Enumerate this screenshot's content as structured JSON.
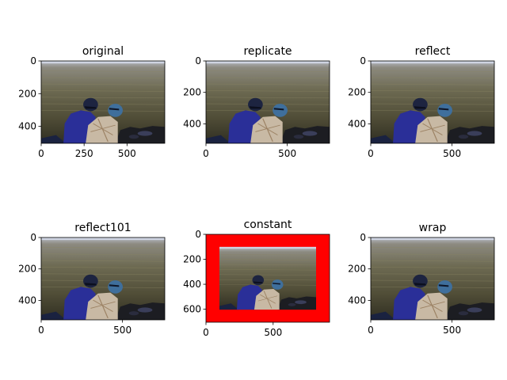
{
  "figure": {
    "background": "#ffffff",
    "pad_color": "#ff0000"
  },
  "chart_data": [
    {
      "type": "image",
      "title": "original",
      "xlim": [
        0,
        720
      ],
      "ylim": [
        504,
        0
      ],
      "xticks": [
        0,
        250,
        500
      ],
      "yticks": [
        0,
        200,
        400
      ],
      "image": {
        "x": [
          0,
          720
        ],
        "y": [
          0,
          504
        ]
      }
    },
    {
      "type": "image",
      "title": "replicate",
      "xlim": [
        0,
        760
      ],
      "ylim": [
        524,
        0
      ],
      "xticks": [
        0,
        500
      ],
      "yticks": [
        0,
        200,
        400
      ],
      "image": {
        "x": [
          0,
          760
        ],
        "y": [
          0,
          524
        ]
      }
    },
    {
      "type": "image",
      "title": "reflect",
      "xlim": [
        0,
        760
      ],
      "ylim": [
        524,
        0
      ],
      "xticks": [
        0,
        500
      ],
      "yticks": [
        0,
        200,
        400
      ],
      "image": {
        "x": [
          0,
          760
        ],
        "y": [
          0,
          524
        ]
      }
    },
    {
      "type": "image",
      "title": "reflect101",
      "xlim": [
        0,
        760
      ],
      "ylim": [
        524,
        0
      ],
      "xticks": [
        0,
        500
      ],
      "yticks": [
        0,
        200,
        400
      ],
      "image": {
        "x": [
          0,
          760
        ],
        "y": [
          0,
          524
        ]
      }
    },
    {
      "type": "image",
      "title": "constant",
      "xlim": [
        0,
        920
      ],
      "ylim": [
        704,
        0
      ],
      "xticks": [
        0,
        500
      ],
      "yticks": [
        0,
        200,
        400,
        600
      ],
      "border": {
        "x": [
          0,
          920
        ],
        "y": [
          0,
          704
        ]
      },
      "image": {
        "x": [
          100,
          820
        ],
        "y": [
          100,
          604
        ]
      }
    },
    {
      "type": "image",
      "title": "wrap",
      "xlim": [
        0,
        760
      ],
      "ylim": [
        524,
        0
      ],
      "xticks": [
        0,
        500
      ],
      "yticks": [
        0,
        200,
        400
      ],
      "image": {
        "x": [
          0,
          760
        ],
        "y": [
          0,
          524
        ]
      }
    }
  ]
}
